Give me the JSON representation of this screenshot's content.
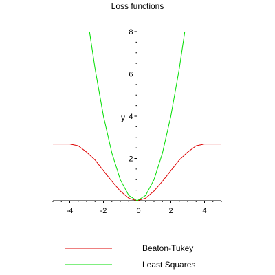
{
  "chart_data": {
    "type": "line",
    "title": "Loss functions",
    "xlabel": "",
    "ylabel": "y",
    "xlim": [
      -5,
      5
    ],
    "ylim": [
      0,
      8
    ],
    "x_ticks": [
      -4,
      -2,
      0,
      2,
      4
    ],
    "x_tick_labels": [
      "-4",
      "-2",
      "0",
      "2",
      "4"
    ],
    "y_ticks": [
      0,
      2,
      4,
      6,
      8
    ],
    "y_tick_labels": [
      "0",
      "2",
      "4",
      "6",
      "8"
    ],
    "grid": false,
    "legend_position": "bottom",
    "series": [
      {
        "name": "Beaton-Tukey",
        "color": "#dd0000",
        "x": [
          -5,
          -4,
          -3.5,
          -3,
          -2.5,
          -2,
          -1.5,
          -1,
          -0.5,
          0,
          0.5,
          1,
          1.5,
          2,
          2.5,
          3,
          3.5,
          4,
          5
        ],
        "y": [
          2.68,
          2.68,
          2.6,
          2.3,
          1.93,
          1.42,
          0.92,
          0.46,
          0.12,
          0,
          0.12,
          0.46,
          0.92,
          1.42,
          1.93,
          2.3,
          2.6,
          2.68,
          2.68
        ]
      },
      {
        "name": "Least Squares",
        "color": "#00dd00",
        "x": [
          -2.83,
          -2.5,
          -2,
          -1.5,
          -1,
          -0.5,
          0,
          0.5,
          1,
          1.5,
          2,
          2.5,
          2.83
        ],
        "y": [
          8,
          6.25,
          4,
          2.25,
          1,
          0.25,
          0,
          0.25,
          1,
          2.25,
          4,
          6.25,
          8
        ]
      }
    ]
  }
}
